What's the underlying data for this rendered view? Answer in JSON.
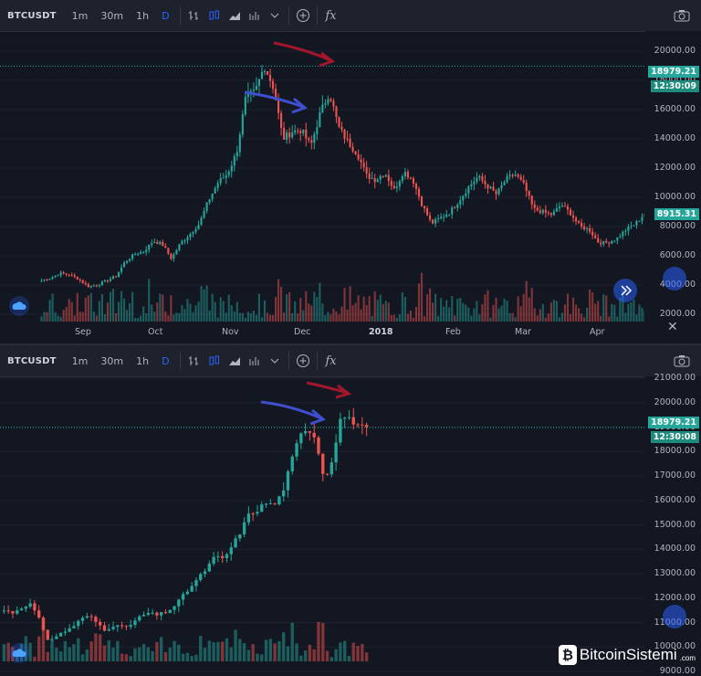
{
  "toolbar": {
    "symbol": "BTCUSDT",
    "intervals": [
      "1m",
      "30m",
      "1h",
      "D"
    ],
    "active_interval": "D",
    "fx_label": "fx"
  },
  "watermark": {
    "brand": "BitcoinSistemi",
    "suffix": ".com"
  },
  "colors": {
    "up": "#26a69a",
    "down": "#ef5350",
    "bg": "#131722",
    "arrow_red": "#a3172b",
    "arrow_blue": "#3f4fd0",
    "price_line": "#26a69a"
  },
  "chart_data": [
    {
      "type": "candlestick",
      "title": "",
      "symbol": "BTCUSDT",
      "interval": "D",
      "y_ticks": [
        2000,
        4000,
        6000,
        8000,
        10000,
        12000,
        14000,
        16000,
        18000,
        20000
      ],
      "y_tick_labels": [
        "2000.00",
        "4000.00",
        "6000.00",
        "8000.00",
        "10000.00",
        "12000.00",
        "14000.00",
        "16000.00",
        "18000.00",
        "20000.00"
      ],
      "ylim": [
        1500,
        21000
      ],
      "x_labels": [
        "Sep",
        "Oct",
        "Nov",
        "Dec",
        "2018",
        "Feb",
        "Mar",
        "Apr"
      ],
      "price_tag": "18979.21",
      "time_tag": "12:30:09",
      "last_price_tag": "8915.31",
      "close_path": [
        4300,
        4500,
        4800,
        4700,
        4400,
        3900,
        4000,
        4300,
        4600,
        5600,
        6100,
        6300,
        7000,
        6800,
        5800,
        6900,
        7500,
        8200,
        9800,
        11000,
        11600,
        13000,
        16800,
        17200,
        19000,
        17500,
        14000,
        14500,
        14600,
        13500,
        15700,
        17200,
        14800,
        13800,
        13000,
        11500,
        11200,
        11700,
        10500,
        11800,
        11200,
        9500,
        8200,
        8600,
        9000,
        9800,
        10700,
        11400,
        10800,
        10200,
        11200,
        11600,
        10800,
        9200,
        9000,
        8800,
        9500,
        8900,
        8000,
        7800,
        6900,
        6900,
        7200,
        7800,
        8200,
        8900
      ],
      "annotations": [
        {
          "type": "arrow",
          "color": "red",
          "target": "peak"
        },
        {
          "type": "arrow",
          "color": "blue",
          "target": "previous top"
        }
      ]
    },
    {
      "type": "candlestick",
      "title": "",
      "symbol": "BTCUSDT",
      "interval": "D",
      "y_ticks": [
        9000,
        10000,
        11000,
        12000,
        13000,
        14000,
        15000,
        16000,
        17000,
        18000,
        19000,
        20000,
        21000
      ],
      "y_tick_labels": [
        "9000.00",
        "10000.00",
        "11000.00",
        "12000.00",
        "13000.00",
        "14000.00",
        "15000.00",
        "16000.00",
        "17000.00",
        "18000.00",
        "19000.00",
        "20000.00",
        "21000.00"
      ],
      "ylim": [
        9000,
        21000
      ],
      "price_tag": "18979.21",
      "time_tag": "12:30:08",
      "close_path": [
        11500,
        11400,
        11600,
        11800,
        11300,
        10300,
        10400,
        10600,
        10800,
        11100,
        11300,
        11000,
        10700,
        10900,
        10800,
        10900,
        11200,
        11400,
        11300,
        11400,
        11600,
        12000,
        12400,
        12800,
        13200,
        13700,
        13600,
        14100,
        14700,
        15400,
        15600,
        15900,
        15800,
        16300,
        17500,
        18600,
        19000,
        18500,
        16800,
        17800,
        19500,
        19300,
        19100,
        18900
      ],
      "annotations": [
        {
          "type": "arrow",
          "color": "red",
          "target": "peak"
        },
        {
          "type": "arrow",
          "color": "blue",
          "target": "previous top"
        }
      ]
    }
  ]
}
